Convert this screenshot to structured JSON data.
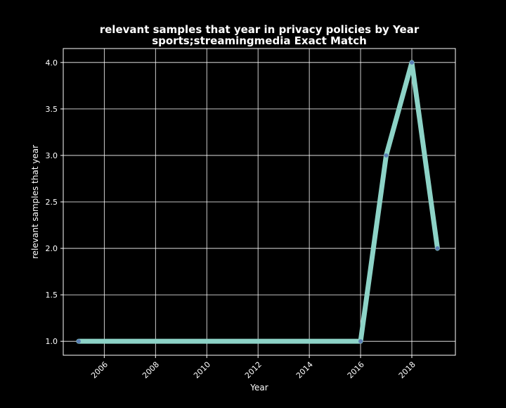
{
  "chart_data": {
    "type": "line",
    "title": "relevant samples that year in privacy policies by Year",
    "subtitle": "sports;streamingmedia Exact Match",
    "xlabel": "Year",
    "ylabel": "relevant samples that year",
    "x": [
      2005,
      2016,
      2017,
      2018,
      2019
    ],
    "y": [
      1.0,
      1.0,
      3.0,
      4.0,
      2.0
    ],
    "xlim": [
      2004.4,
      2019.7
    ],
    "ylim": [
      0.85,
      4.15
    ],
    "xticks": [
      2006,
      2008,
      2010,
      2012,
      2014,
      2016,
      2018
    ],
    "yticks": [
      1.0,
      1.5,
      2.0,
      2.5,
      3.0,
      3.5,
      4.0
    ],
    "grid": true,
    "line_color": "#8dd3c7",
    "marker_color": "#5b7fb5",
    "background": "#000000",
    "text_color": "#ffffff"
  }
}
